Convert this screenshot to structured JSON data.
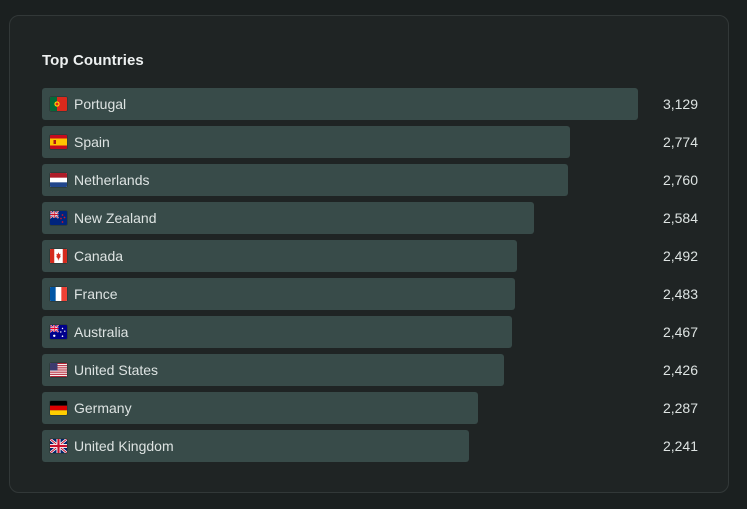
{
  "card": {
    "title": "Top Countries"
  },
  "countries": [
    {
      "name": "Portugal",
      "value": "3,129",
      "count": 3129,
      "flag_icon": "portugal-flag-icon"
    },
    {
      "name": "Spain",
      "value": "2,774",
      "count": 2774,
      "flag_icon": "spain-flag-icon"
    },
    {
      "name": "Netherlands",
      "value": "2,760",
      "count": 2760,
      "flag_icon": "netherlands-flag-icon"
    },
    {
      "name": "New Zealand",
      "value": "2,584",
      "count": 2584,
      "flag_icon": "new-zealand-flag-icon"
    },
    {
      "name": "Canada",
      "value": "2,492",
      "count": 2492,
      "flag_icon": "canada-flag-icon"
    },
    {
      "name": "France",
      "value": "2,483",
      "count": 2483,
      "flag_icon": "france-flag-icon"
    },
    {
      "name": "Australia",
      "value": "2,467",
      "count": 2467,
      "flag_icon": "australia-flag-icon"
    },
    {
      "name": "United States",
      "value": "2,426",
      "count": 2426,
      "flag_icon": "united-states-flag-icon"
    },
    {
      "name": "Germany",
      "value": "2,287",
      "count": 2287,
      "flag_icon": "germany-flag-icon"
    },
    {
      "name": "United Kingdom",
      "value": "2,241",
      "count": 2241,
      "flag_icon": "united-kingdom-flag-icon"
    }
  ],
  "colors": {
    "background": "#1b2020",
    "card": "#1f2424",
    "bar": "#384b49",
    "text": "#dde3e2"
  }
}
